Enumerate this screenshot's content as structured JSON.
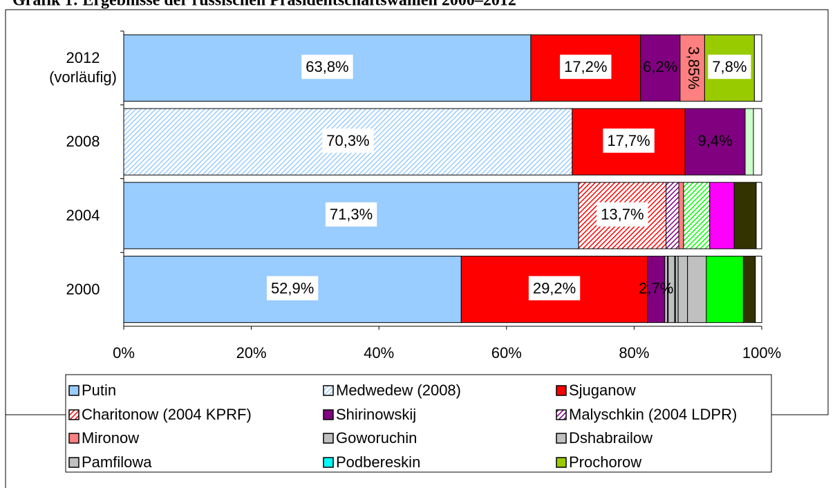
{
  "chart_data": {
    "type": "stacked-bar-horizontal",
    "title": "Grafik 1: Ergebnisse der russischen Präsidentschaftswahlen 2000–2012",
    "categories": [
      "2012 (vorläufig)",
      "2008",
      "2004",
      "2000"
    ],
    "xlim": [
      0,
      100
    ],
    "xticks": [
      {
        "value": 0,
        "label": "0%"
      },
      {
        "value": 20,
        "label": "20%"
      },
      {
        "value": 40,
        "label": "40%"
      },
      {
        "value": 60,
        "label": "60%"
      },
      {
        "value": 80,
        "label": "80%"
      },
      {
        "value": 100,
        "label": "100%"
      }
    ],
    "series": [
      {
        "name": "Putin",
        "color": "#99ccff",
        "values": [
          63.8,
          null,
          71.3,
          52.9
        ],
        "value_labels": [
          "63,8%",
          null,
          "71,3%",
          "52,9%"
        ]
      },
      {
        "name": "Medwedew (2008)",
        "color": "#99ccff",
        "pattern": "hatch",
        "values": [
          null,
          70.3,
          null,
          null
        ],
        "value_labels": [
          null,
          "70,3%",
          null,
          null
        ]
      },
      {
        "name": "Sjuganow",
        "color": "#ff0000",
        "values": [
          17.2,
          17.7,
          null,
          29.2
        ],
        "value_labels": [
          "17,2%",
          "17,7%",
          null,
          "29,2%"
        ]
      },
      {
        "name": "Charitonow (2004 KPRF)",
        "color": "#ff0000",
        "pattern": "hatch",
        "values": [
          null,
          null,
          13.7,
          null
        ],
        "value_labels": [
          null,
          null,
          "13,7%",
          null
        ]
      },
      {
        "name": "Shirinowskij",
        "color": "#800080",
        "values": [
          6.2,
          9.4,
          null,
          2.7
        ],
        "value_labels": [
          "6,2%",
          "9,4%",
          null,
          "2,7%"
        ]
      },
      {
        "name": "Malyschkin (2004 LDPR)",
        "color": "#800080",
        "pattern": "hatch",
        "values": [
          null,
          null,
          2.0,
          null
        ]
      },
      {
        "name": "Mironow",
        "color": "#ff8080",
        "values": [
          3.85,
          null,
          0.75,
          null
        ],
        "value_labels": [
          "3,85%",
          null,
          null,
          null
        ]
      },
      {
        "name": "Goworuchin",
        "color": "#c0c0c0",
        "values": [
          null,
          null,
          null,
          0.44
        ]
      },
      {
        "name": "Dshabrailow",
        "color": "#c0c0c0",
        "values": [
          null,
          null,
          null,
          0.1
        ]
      },
      {
        "name": "Pamfilowa",
        "color": "#c0c0c0",
        "values": [
          null,
          null,
          null,
          1.01
        ]
      },
      {
        "name": "Podbereskin",
        "color": "#00ffff",
        "values": [
          null,
          null,
          null,
          0.13
        ]
      },
      {
        "color": "#c0c0c0",
        "values": [
          null,
          null,
          null,
          0.42
        ]
      },
      {
        "color": "#c0c0c0",
        "values": [
          null,
          null,
          null,
          1.47
        ]
      },
      {
        "color": "#c0c0c0",
        "values": [
          null,
          null,
          null,
          2.95
        ]
      },
      {
        "name": "Prochorow",
        "color": "#99cc00",
        "values": [
          7.8,
          null,
          null,
          null
        ],
        "value_labels": [
          "7,8%",
          null,
          null,
          null
        ]
      },
      {
        "color": "#ccffcc",
        "values": [
          null,
          1.3,
          null,
          null
        ]
      },
      {
        "color": "#00ff00",
        "pattern": "hatch",
        "values": [
          null,
          null,
          4.1,
          null
        ]
      },
      {
        "color": "#ff00ff",
        "values": [
          null,
          null,
          3.84,
          null
        ]
      },
      {
        "color": "#00ff00",
        "values": [
          null,
          null,
          null,
          5.8
        ]
      },
      {
        "color": "#333300",
        "values": [
          null,
          null,
          3.45,
          1.88
        ]
      },
      {
        "color": "#ffffff",
        "values": [
          1.15,
          1.3,
          0.86,
          1.0
        ]
      }
    ]
  }
}
